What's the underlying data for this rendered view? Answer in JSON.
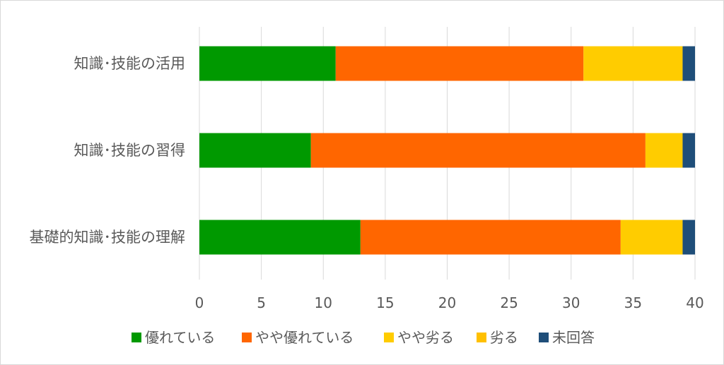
{
  "chart_data": {
    "type": "bar",
    "orientation": "horizontal",
    "stacked": true,
    "categories": [
      "知識･技能の活用",
      "知識･技能の習得",
      "基礎的知識･技能の理解"
    ],
    "series": [
      {
        "name": "優れている",
        "color": "#009900",
        "values": [
          11,
          9,
          13
        ]
      },
      {
        "name": "やや優れている",
        "color": "#ff6600",
        "values": [
          20,
          27,
          21
        ]
      },
      {
        "name": "やや劣る",
        "color": "#ffcc00",
        "values": [
          8,
          3,
          5
        ]
      },
      {
        "name": "劣る",
        "color": "#ffc000",
        "values": [
          0,
          0,
          0
        ]
      },
      {
        "name": "未回答",
        "color": "#1f4e79",
        "values": [
          1,
          1,
          1
        ]
      }
    ],
    "xlim": [
      0,
      40
    ],
    "xticks": [
      "0",
      "5",
      "10",
      "15",
      "20",
      "25",
      "30",
      "35",
      "40"
    ],
    "grid": true,
    "legend_position": "bottom"
  }
}
